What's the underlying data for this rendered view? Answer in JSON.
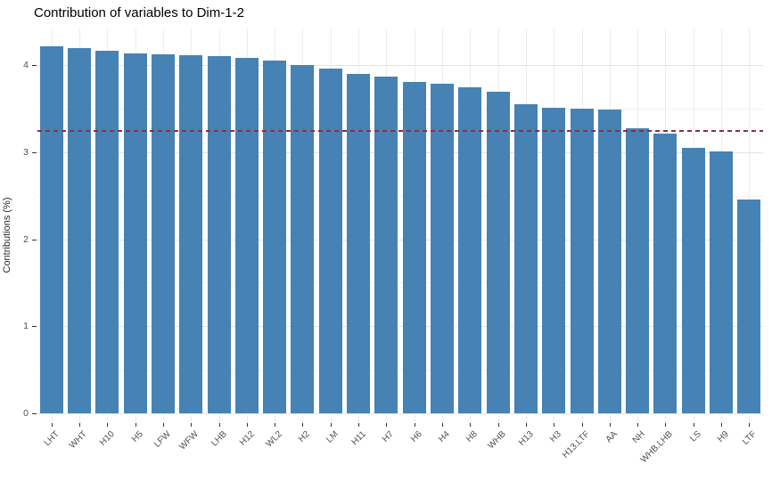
{
  "chart_data": {
    "type": "bar",
    "title": "Contribution of variables to Dim-1-2",
    "xlabel": "",
    "ylabel": "Contributions (%)",
    "categories": [
      "LHT",
      "WHT",
      "H10",
      "H5",
      "LFW",
      "WFW",
      "LHB",
      "H12",
      "WL2",
      "H2",
      "LM",
      "H11",
      "H7",
      "H6",
      "H4",
      "H8",
      "WHB",
      "H13",
      "H3",
      "H13.LTF",
      "AA",
      "NH",
      "WHB.LHB",
      "LS",
      "H9",
      "LTF"
    ],
    "values": [
      4.21,
      4.19,
      4.16,
      4.13,
      4.12,
      4.11,
      4.1,
      4.08,
      4.05,
      4.0,
      3.96,
      3.9,
      3.87,
      3.81,
      3.79,
      3.74,
      3.69,
      3.55,
      3.51,
      3.5,
      3.49,
      3.27,
      3.21,
      3.05,
      3.01,
      2.46
    ],
    "yticks": [
      0,
      1,
      2,
      3,
      4
    ],
    "yticks_minor": [
      0.5,
      1.5,
      2.5,
      3.5
    ],
    "ylim": [
      0,
      4.42
    ],
    "reference_line": {
      "value": 3.24,
      "style": "dashed",
      "color": "#8f2d3f"
    },
    "bar_color": "#4682b4",
    "grid": true,
    "legend": false
  }
}
